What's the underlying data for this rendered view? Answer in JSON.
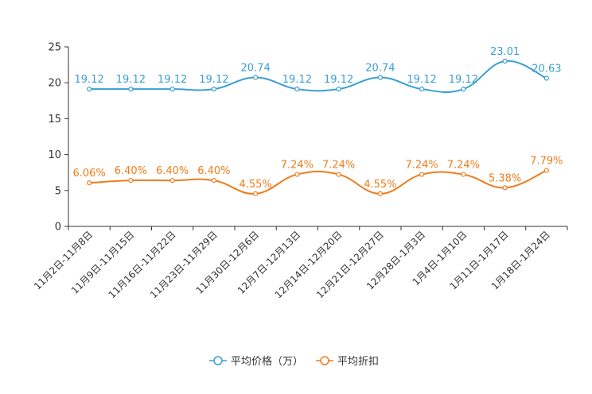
{
  "chart_data": {
    "type": "line",
    "title": "",
    "xlabel": "",
    "ylabel": "",
    "ylim": [
      0,
      25
    ],
    "yticks": [
      0,
      5,
      10,
      15,
      20,
      25
    ],
    "categories": [
      "11月2日-11月8日",
      "11月9日-11月15日",
      "11月16日-11月22日",
      "11月23日-11月29日",
      "11月30日-12月6日",
      "12月7日-12月13日",
      "12月14日-12月20日",
      "12月21日-12月27日",
      "12月28日-1月3日",
      "1月4日-1月10日",
      "1月11日-1月17日",
      "1月18日-1月24日"
    ],
    "series": [
      {
        "name": "平均价格（万）",
        "color": "#3a9fd2",
        "values": [
          19.12,
          19.12,
          19.12,
          19.12,
          20.74,
          19.12,
          19.12,
          20.74,
          19.12,
          19.12,
          23.01,
          20.63
        ],
        "labels": [
          "19.12",
          "19.12",
          "19.12",
          "19.12",
          "20.74",
          "19.12",
          "19.12",
          "20.74",
          "19.12",
          "19.12",
          "23.01",
          "20.63"
        ]
      },
      {
        "name": "平均折扣",
        "color": "#f07c1c",
        "values": [
          6.06,
          6.4,
          6.4,
          6.4,
          4.55,
          7.24,
          7.24,
          4.55,
          7.24,
          7.24,
          5.38,
          7.79
        ],
        "labels": [
          "6.06%",
          "6.40%",
          "6.40%",
          "6.40%",
          "4.55%",
          "7.24%",
          "7.24%",
          "4.55%",
          "7.24%",
          "7.24%",
          "5.38%",
          "7.79%"
        ]
      }
    ],
    "legend": {
      "position": "bottom-center"
    },
    "grid": false
  }
}
